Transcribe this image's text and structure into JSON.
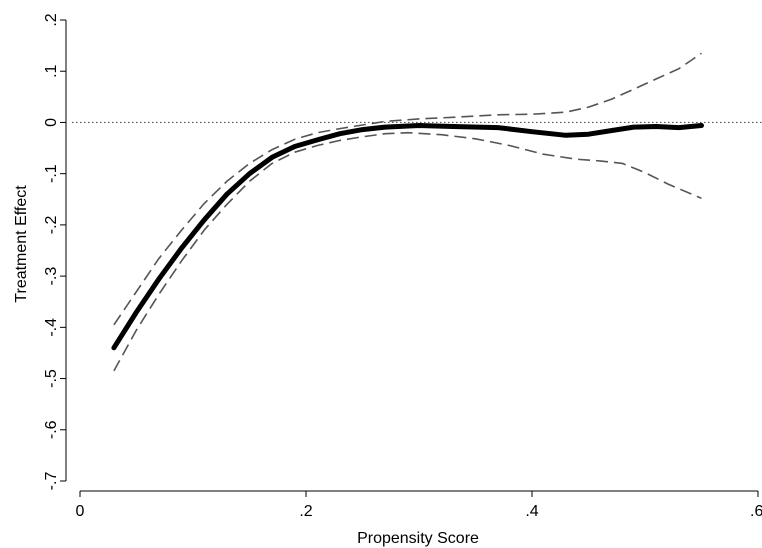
{
  "chart_data": {
    "type": "line",
    "title": "",
    "xlabel": "Propensity Score",
    "ylabel": "Treatment Effect",
    "xlim": [
      0,
      0.6
    ],
    "ylim": [
      -0.7,
      0.2
    ],
    "xticks": [
      {
        "value": 0,
        "label": "0"
      },
      {
        "value": 0.2,
        "label": ".2"
      },
      {
        "value": 0.4,
        "label": ".4"
      },
      {
        "value": 0.6,
        "label": ".6"
      }
    ],
    "yticks": [
      {
        "value": 0.2,
        "label": ".2"
      },
      {
        "value": 0.1,
        "label": ".1"
      },
      {
        "value": 0,
        "label": "0"
      },
      {
        "value": -0.1,
        "label": "-.1"
      },
      {
        "value": -0.2,
        "label": "-.2"
      },
      {
        "value": -0.3,
        "label": "-.3"
      },
      {
        "value": -0.4,
        "label": "-.4"
      },
      {
        "value": -0.5,
        "label": "-.5"
      },
      {
        "value": -0.6,
        "label": "-.6"
      },
      {
        "value": -0.7,
        "label": "-.7"
      }
    ],
    "reference_line": {
      "y": 0,
      "style": "dotted",
      "color": "#555555"
    },
    "grid": false,
    "series": [
      {
        "role": "estimate",
        "style": "solid",
        "color": "#000000",
        "x": [
          0.03,
          0.05,
          0.07,
          0.09,
          0.11,
          0.13,
          0.15,
          0.17,
          0.19,
          0.21,
          0.23,
          0.25,
          0.27,
          0.3,
          0.33,
          0.37,
          0.4,
          0.43,
          0.45,
          0.47,
          0.49,
          0.51,
          0.53,
          0.55
        ],
        "y": [
          -0.44,
          -0.37,
          -0.305,
          -0.245,
          -0.19,
          -0.14,
          -0.1,
          -0.068,
          -0.047,
          -0.034,
          -0.022,
          -0.014,
          -0.009,
          -0.006,
          -0.008,
          -0.01,
          -0.018,
          -0.025,
          -0.023,
          -0.016,
          -0.009,
          -0.008,
          -0.01,
          -0.006
        ]
      },
      {
        "role": "upper-bound",
        "style": "dashed",
        "color": "#555555",
        "x": [
          0.03,
          0.05,
          0.07,
          0.09,
          0.11,
          0.13,
          0.15,
          0.17,
          0.19,
          0.21,
          0.23,
          0.25,
          0.27,
          0.3,
          0.33,
          0.37,
          0.4,
          0.43,
          0.45,
          0.47,
          0.49,
          0.51,
          0.53,
          0.55
        ],
        "y": [
          -0.395,
          -0.33,
          -0.265,
          -0.21,
          -0.158,
          -0.115,
          -0.08,
          -0.053,
          -0.033,
          -0.02,
          -0.012,
          -0.005,
          0.002,
          0.007,
          0.01,
          0.015,
          0.016,
          0.02,
          0.03,
          0.045,
          0.065,
          0.085,
          0.105,
          0.135
        ]
      },
      {
        "role": "lower-bound",
        "style": "dashed",
        "color": "#555555",
        "x": [
          0.03,
          0.05,
          0.07,
          0.09,
          0.11,
          0.13,
          0.15,
          0.17,
          0.19,
          0.21,
          0.23,
          0.25,
          0.27,
          0.29,
          0.32,
          0.35,
          0.38,
          0.41,
          0.44,
          0.46,
          0.48,
          0.5,
          0.52,
          0.55
        ],
        "y": [
          -0.485,
          -0.405,
          -0.335,
          -0.27,
          -0.21,
          -0.16,
          -0.115,
          -0.08,
          -0.058,
          -0.045,
          -0.035,
          -0.028,
          -0.022,
          -0.02,
          -0.024,
          -0.032,
          -0.045,
          -0.062,
          -0.072,
          -0.075,
          -0.08,
          -0.098,
          -0.12,
          -0.148
        ]
      }
    ]
  }
}
